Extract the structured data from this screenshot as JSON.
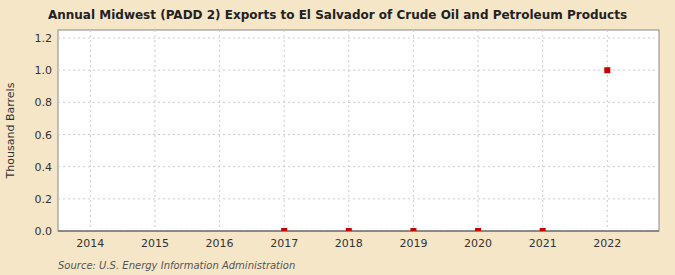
{
  "chart_data": {
    "type": "scatter",
    "title": "Annual Midwest (PADD 2) Exports to El Salvador of Crude Oil and Petroleum Products",
    "y_label": "Thousand Barrels",
    "source": "Source: U.S. Energy Information Administration",
    "x": [
      2017,
      2018,
      2019,
      2020,
      2021,
      2022
    ],
    "values": [
      0.0,
      0.0,
      0.0,
      0.0,
      0.0,
      1.0
    ],
    "color": "#cc0000",
    "marker": "square",
    "xlim": [
      2013.5,
      2022.8
    ],
    "ylim": [
      0.0,
      1.25
    ],
    "xticks": [
      2014,
      2015,
      2016,
      2017,
      2018,
      2019,
      2020,
      2021,
      2022
    ],
    "yticks": [
      {
        "value": 0.0,
        "label": "0.0"
      },
      0.2,
      0.4,
      0.6,
      0.8,
      {
        "value": 1.0,
        "label": "1.0"
      },
      1.2
    ],
    "grid": true
  }
}
